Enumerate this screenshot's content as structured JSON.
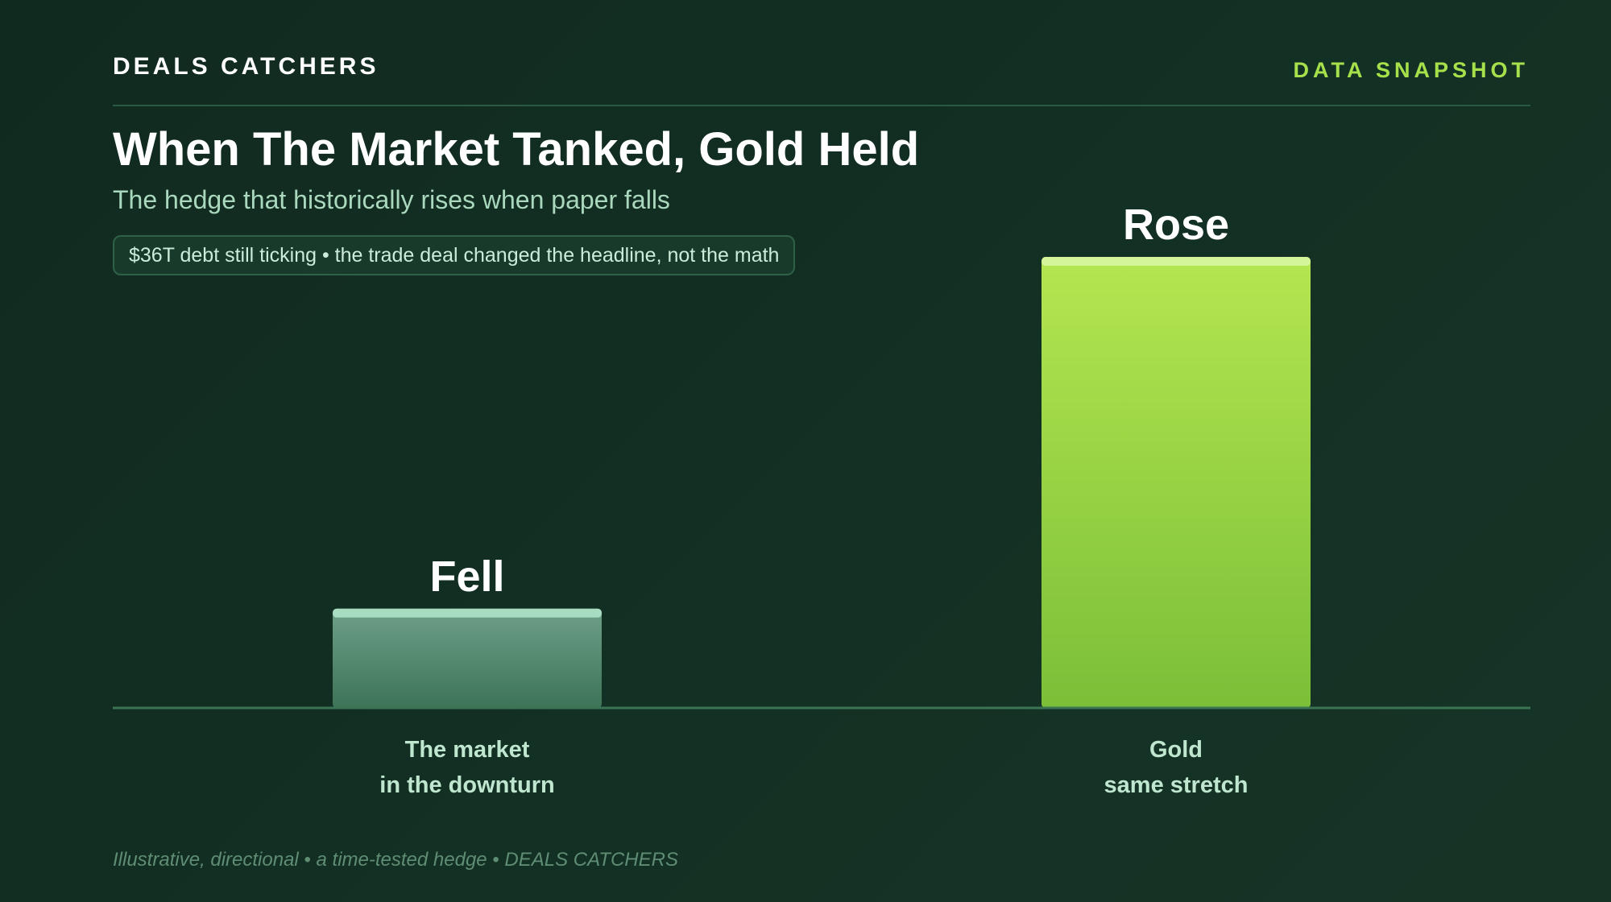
{
  "header": {
    "brand": "DEALS CATCHERS",
    "tag": "DATA SNAPSHOT",
    "title": "When The Market Tanked, Gold Held",
    "subtitle": "The hedge that historically rises when paper falls",
    "note": "$36T debt still ticking • the trade deal changed the headline, not the math"
  },
  "footer": "Illustrative, directional • a time-tested hedge • DEALS CATCHERS",
  "colors": {
    "background": "#122b21",
    "accent": "#a6e04a",
    "market_bar_top": "#6fa08a",
    "market_bar_bottom": "#3d7356",
    "market_bar_cap": "#a8dcc0",
    "gold_bar_top": "#b4e650",
    "gold_bar_bottom": "#7bbf38",
    "gold_bar_cap": "#d4f59a",
    "axis": "#3b7453"
  },
  "chart_data": {
    "type": "bar",
    "categories": [
      [
        "The market",
        "in the downturn"
      ],
      [
        "Gold",
        "same stretch"
      ]
    ],
    "values": [
      22,
      100
    ],
    "data_labels": [
      "Fell",
      "Rose"
    ],
    "ylim": [
      0,
      100
    ],
    "grid": false,
    "legend": "none"
  }
}
